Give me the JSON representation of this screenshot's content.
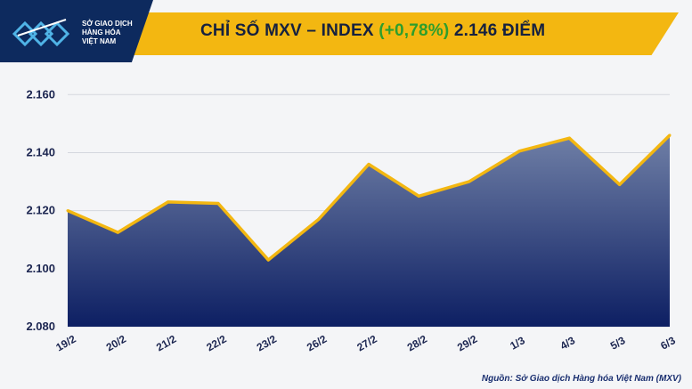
{
  "header": {
    "logo_lines": [
      "SỞ GIAO DỊCH",
      "HÀNG HÓA",
      "VIỆT NAM"
    ],
    "title_prefix": "CHỈ SỐ MXV – INDEX",
    "title_change": "(+0,78%)",
    "title_suffix": "2.146 ĐIỂM",
    "colors": {
      "band": "#f3b711",
      "logo_bg": "#0d2a5e",
      "change": "#2e9e2c"
    }
  },
  "chart_data": {
    "type": "area",
    "categories": [
      "19/2",
      "20/2",
      "21/2",
      "22/2",
      "23/2",
      "26/2",
      "27/2",
      "28/2",
      "29/2",
      "1/3",
      "4/3",
      "5/3",
      "6/3"
    ],
    "values": [
      2120,
      2112.5,
      2123,
      2122.5,
      2103,
      2117,
      2136,
      2125,
      2130,
      2140.5,
      2145,
      2129,
      2146
    ],
    "ylim": [
      2080,
      2165
    ],
    "yticks": [
      2080,
      2100,
      2120,
      2140,
      2160
    ],
    "ytick_labels": [
      "2.080",
      "2.100",
      "2.120",
      "2.140",
      "2.160"
    ],
    "grid": true,
    "colors": {
      "line": "#f3b711",
      "fill_top": "#6f7fa6",
      "fill_bottom": "#0d1f63"
    }
  },
  "source": "Nguồn: Sở Giao dịch Hàng hóa Việt Nam (MXV)"
}
